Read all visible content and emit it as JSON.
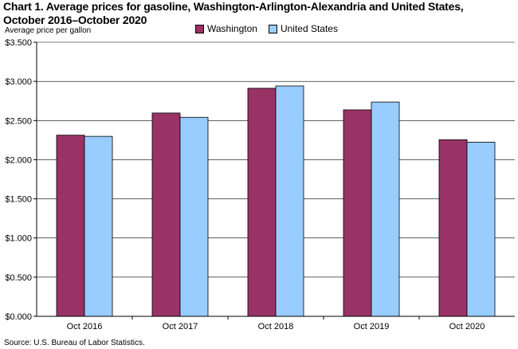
{
  "title_line1": "Chart 1. Average prices for gasoline, Washington-Arlington-Alexandria and United States,",
  "title_line2": "October 2016–October 2020",
  "ylabel": "Average  price  per gallon",
  "source": "Source: U.S. Bureau of Labor Statistics.",
  "colors": {
    "washington": "#993366",
    "united_states": "#99ccff",
    "axis": "#000000",
    "grid": "#000000"
  },
  "chart_data": {
    "type": "bar",
    "categories": [
      "Oct 2016",
      "Oct 2017",
      "Oct 2018",
      "Oct 2019",
      "Oct 2020"
    ],
    "series": [
      {
        "name": "Washington",
        "values": [
          2.313,
          2.596,
          2.912,
          2.636,
          2.255
        ]
      },
      {
        "name": "United States",
        "values": [
          2.298,
          2.541,
          2.941,
          2.736,
          2.224
        ]
      }
    ],
    "ylabel": "Average  price  per gallon",
    "ylim": [
      0,
      3.5
    ],
    "yticks": [
      0,
      0.5,
      1.0,
      1.5,
      2.0,
      2.5,
      3.0,
      3.5
    ],
    "ytick_labels": [
      "$0.000",
      "$0.500",
      "$1.000",
      "$1.500",
      "$2.000",
      "$2.500",
      "$3.000",
      "$3.500"
    ],
    "grid": true,
    "legend": "top-center"
  }
}
